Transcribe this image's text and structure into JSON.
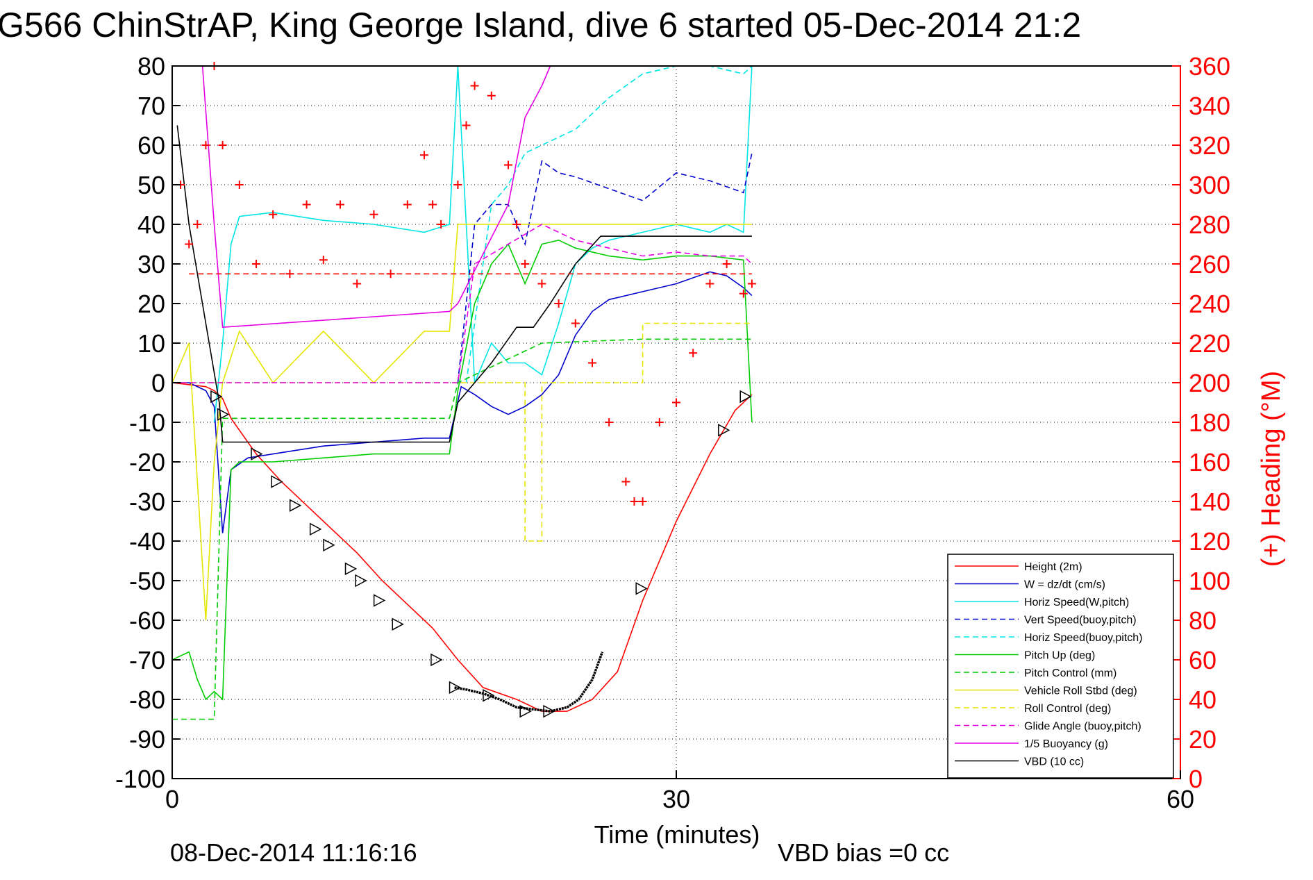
{
  "chart_data": {
    "type": "line",
    "title": "G566 ChinStrAP, King George Island, dive 6 started 05-Dec-2014 21:2",
    "xlabel": "Time (minutes)",
    "ylabel_right": "(+) Heading (°M)",
    "footer_date": "08-Dec-2014 11:16:16",
    "footer_bias": "VBD bias =0 cc",
    "xlim": [
      0,
      60
    ],
    "ylim_left": [
      -100,
      80
    ],
    "ylim_right": [
      0,
      360
    ],
    "grid": true,
    "legend_position": "bottom-right",
    "x_ticks": [
      "0",
      "30",
      "60"
    ],
    "y_ticks_left": [
      "80",
      "70",
      "60",
      "50",
      "40",
      "30",
      "20",
      "10",
      "0",
      "-10",
      "-20",
      "-30",
      "-40",
      "-50",
      "-60",
      "-70",
      "-80",
      "-90",
      "-100"
    ],
    "y_ticks_right": [
      "360",
      "340",
      "320",
      "300",
      "280",
      "260",
      "240",
      "220",
      "200",
      "180",
      "160",
      "140",
      "120",
      "100",
      "80",
      "60",
      "40",
      "20",
      "0"
    ],
    "colors": {
      "axis": "#000000",
      "right_axis": "#ff0000",
      "grid": "#000000",
      "height": "#ff0000",
      "w": "#0000cc",
      "horiz_w": "#00e5e5",
      "vert_buoy": "#0000cc",
      "horiz_buoy": "#00e5e5",
      "pitch_up": "#00cc00",
      "pitch_control": "#00cc00",
      "roll_stbd": "#e5e500",
      "roll_control": "#e5e500",
      "glide": "#e500e5",
      "buoyancy": "#e500e5",
      "vbd": "#000000",
      "heading": "#ff0000"
    },
    "legend": [
      {
        "label": "Height (2m)",
        "color": "#ff0000",
        "dash": false
      },
      {
        "label": "W = dz/dt (cm/s)",
        "color": "#0000cc",
        "dash": false
      },
      {
        "label": "Horiz Speed(W,pitch)",
        "color": "#00e5e5",
        "dash": false
      },
      {
        "label": "Vert Speed(buoy,pitch)",
        "color": "#0000cc",
        "dash": true
      },
      {
        "label": "Horiz Speed(buoy,pitch)",
        "color": "#00e5e5",
        "dash": true
      },
      {
        "label": "Pitch Up (deg)",
        "color": "#00cc00",
        "dash": false
      },
      {
        "label": "Pitch Control (mm)",
        "color": "#00cc00",
        "dash": true
      },
      {
        "label": "Vehicle Roll Stbd (deg)",
        "color": "#e5e500",
        "dash": false
      },
      {
        "label": "Roll Control (deg)",
        "color": "#e5e500",
        "dash": true
      },
      {
        "label": "Glide Angle (buoy,pitch)",
        "color": "#e500e5",
        "dash": true
      },
      {
        "label": "1/5 Buoyancy (g)",
        "color": "#e500e5",
        "dash": false
      },
      {
        "label": "VBD (10 cc)",
        "color": "#000000",
        "dash": false
      }
    ],
    "series": [
      {
        "name": "Height (2m)",
        "axis": "left",
        "x": [
          0,
          1,
          2,
          2.5,
          3,
          3.5,
          5,
          6.5,
          8,
          9.5,
          11,
          12.5,
          14,
          15.5,
          17,
          18.5,
          20.5,
          22,
          23.5,
          25,
          26.5,
          28,
          30,
          32,
          33.5,
          34.5
        ],
        "y": [
          0,
          -0.5,
          -1,
          -2,
          -4,
          -9,
          -18,
          -25,
          -31,
          -37,
          -43,
          -50,
          -56,
          -62,
          -70,
          -77,
          -80,
          -83,
          -83,
          -80,
          -73,
          -55,
          -35,
          -18,
          -7,
          -3
        ]
      },
      {
        "name": "W = dz/dt (cm/s)",
        "axis": "left",
        "x": [
          0,
          1,
          2,
          2.5,
          3,
          3.5,
          4.5,
          6,
          9,
          12,
          15,
          16.5,
          17.2,
          18,
          19,
          20,
          21,
          22,
          23,
          24,
          25,
          26,
          28,
          30,
          32,
          33,
          34,
          34.5
        ],
        "y": [
          0,
          0,
          -2,
          -6,
          -38,
          -22,
          -19,
          -18,
          -16,
          -15,
          -14,
          -14,
          -1,
          -3,
          -6,
          -8,
          -6,
          -3,
          2,
          12,
          18,
          21,
          23,
          25,
          28,
          27,
          24,
          22
        ]
      },
      {
        "name": "Horiz Speed(W,pitch)",
        "axis": "left",
        "x": [
          2.5,
          3,
          3.5,
          4,
          6,
          9,
          12,
          15,
          16.5,
          17,
          17.5,
          18,
          19,
          20,
          21,
          22,
          23,
          24,
          25,
          26,
          28,
          30,
          32,
          33,
          34,
          34.5
        ],
        "y": [
          -10,
          10,
          35,
          42,
          43,
          41,
          40,
          38,
          40,
          80,
          40,
          0,
          10,
          5,
          5,
          2,
          15,
          30,
          34,
          36,
          38,
          40,
          38,
          40,
          38,
          80
        ]
      },
      {
        "name": "Vert Speed(buoy,pitch)",
        "axis": "left",
        "x": [
          17,
          18,
          19,
          20,
          21,
          22,
          23,
          24,
          26,
          28,
          30,
          32,
          34,
          34.5
        ],
        "y": [
          0,
          40,
          45,
          45,
          35,
          56,
          53,
          52,
          49,
          46,
          53,
          51,
          48,
          58
        ]
      },
      {
        "name": "Horiz Speed(buoy,pitch)",
        "axis": "left",
        "x": [
          17.5,
          19,
          20,
          21,
          22,
          24,
          26,
          28,
          30,
          32,
          34,
          34.5
        ],
        "y": [
          0,
          45,
          50,
          58,
          60,
          64,
          72,
          78,
          80,
          80,
          78,
          80
        ]
      },
      {
        "name": "Pitch Up (deg)",
        "axis": "left",
        "x": [
          0,
          1,
          1.5,
          2,
          2.5,
          3,
          3.5,
          4,
          6,
          9,
          12,
          15,
          16.5,
          17,
          18,
          19,
          20,
          21,
          22,
          23,
          24,
          26,
          28,
          30,
          32,
          34,
          34.5
        ],
        "y": [
          -70,
          -68,
          -75,
          -80,
          -78,
          -80,
          -22,
          -20,
          -20,
          -19,
          -18,
          -18,
          -18,
          -2,
          20,
          30,
          35,
          25,
          35,
          36,
          34,
          32,
          31,
          32,
          32,
          31,
          -10
        ]
      },
      {
        "name": "Pitch Control (mm)",
        "axis": "left",
        "x": [
          0,
          2.5,
          3,
          15,
          16.5,
          17,
          21,
          22,
          28,
          34.5
        ],
        "y": [
          -85,
          -85,
          -9,
          -9,
          -9,
          0,
          8,
          10,
          11,
          11
        ]
      },
      {
        "name": "Vehicle Roll Stbd (deg)",
        "axis": "left",
        "x": [
          0,
          1,
          2,
          2.5,
          3,
          4,
          6,
          9,
          12,
          15,
          16.5,
          17,
          20,
          22,
          24,
          26,
          28,
          30,
          34,
          34.5
        ],
        "y": [
          0,
          10,
          -60,
          -20,
          0,
          13,
          0,
          13,
          0,
          13,
          13,
          40,
          40,
          40,
          40,
          40,
          40,
          40,
          40,
          40
        ]
      },
      {
        "name": "Roll Control (deg)",
        "axis": "left",
        "x": [
          0,
          2.5,
          3,
          16.5,
          17,
          21,
          21,
          22,
          22,
          28,
          28,
          34.5
        ],
        "y": [
          0,
          0,
          0,
          0,
          0,
          0,
          -40,
          -40,
          0,
          0,
          15,
          15
        ]
      },
      {
        "name": "Glide Angle (buoy,pitch)",
        "axis": "left",
        "x": [
          0,
          17,
          18,
          20,
          22,
          24,
          26,
          28,
          30,
          32,
          34,
          34.5
        ],
        "y": [
          0,
          0,
          30,
          35,
          40,
          36,
          34,
          32,
          33,
          32,
          32,
          30
        ]
      },
      {
        "name": "1/5 Buoyancy (g)",
        "axis": "left",
        "x": [
          1.8,
          2.5,
          3,
          16.5,
          17,
          20,
          21,
          22,
          22.5,
          24,
          25,
          30,
          34.5
        ],
        "y": [
          80,
          40,
          14,
          18,
          20,
          45,
          67,
          75,
          80,
          80,
          80,
          80,
          80
        ]
      },
      {
        "name": "VBD (10 cc)",
        "axis": "left",
        "x": [
          0.3,
          1,
          2,
          2.8,
          3,
          16.5,
          17,
          19,
          20.5,
          21.5,
          22.5,
          24,
          25.5,
          30,
          34.5
        ],
        "y": [
          65,
          40,
          15,
          -5,
          -15,
          -15,
          -5,
          5,
          14,
          14,
          20,
          30,
          37,
          37,
          37
        ]
      },
      {
        "name": "Heading",
        "axis": "right",
        "x": [
          0.5,
          1,
          1.5,
          2,
          2.5,
          3,
          4,
          5,
          6,
          7,
          8,
          9,
          10,
          11,
          12,
          13,
          14,
          15,
          15.5,
          16,
          17,
          17.5,
          18,
          19,
          20,
          20.5,
          21,
          22,
          23,
          24,
          25,
          26,
          27,
          27.5,
          28,
          29,
          30,
          31,
          32,
          33,
          34,
          34.5
        ],
        "y": [
          300,
          270,
          280,
          320,
          360,
          320,
          300,
          260,
          285,
          255,
          290,
          262,
          290,
          250,
          285,
          255,
          290,
          315,
          290,
          280,
          300,
          330,
          350,
          345,
          310,
          280,
          260,
          250,
          240,
          230,
          210,
          180,
          150,
          140,
          140,
          180,
          190,
          215,
          250,
          260,
          245,
          250
        ]
      },
      {
        "name": "Heading reference",
        "axis": "right",
        "x": [
          1,
          34.5
        ],
        "y": [
          255,
          255
        ]
      }
    ],
    "markers": {
      "triangles": {
        "x": [
          2.6,
          3,
          5,
          6.2,
          7.3,
          8.5,
          9.3,
          10.6,
          11.2,
          12.3,
          13.4,
          15.7,
          16.8,
          18.8,
          21,
          22.4,
          27.9,
          32.8,
          34.1
        ],
        "y": [
          -3.5,
          -8,
          -18,
          -25,
          -31,
          -37,
          -41,
          -47,
          -50,
          -55,
          -61,
          -70,
          -77,
          -79,
          -83,
          -83,
          -52,
          -12,
          -3.5
        ]
      },
      "dense_height": {
        "x": [
          16.8,
          17.5,
          18.5,
          19.5,
          20.5,
          21.5,
          22.5,
          23.5,
          24.2,
          25,
          25.6
        ],
        "y": [
          -77,
          -77.5,
          -78.5,
          -80,
          -82,
          -82.5,
          -83,
          -82,
          -80,
          -75,
          -68
        ]
      }
    }
  }
}
